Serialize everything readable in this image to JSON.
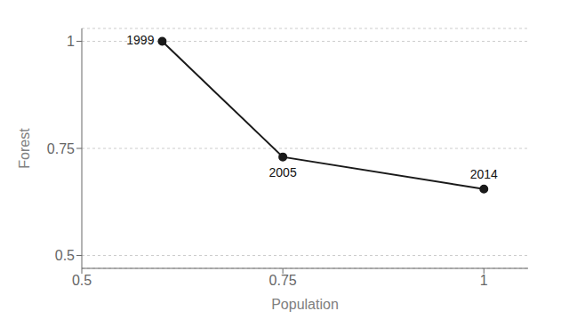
{
  "chart_data": {
    "type": "line",
    "x": [
      0.6,
      0.75,
      1.0
    ],
    "values": [
      1.0,
      0.73,
      0.655
    ],
    "annotations": [
      "1999",
      "2005",
      "2014"
    ],
    "xlabel": "Population",
    "ylabel": "Forest",
    "color": "#1a1a1a",
    "marker": "circle",
    "xlim": [
      0.5,
      1.055
    ],
    "ylim": [
      0.47,
      1.03
    ],
    "xticks": [
      0.5,
      0.75,
      1
    ],
    "yticks": [
      0.5,
      0.75,
      1
    ],
    "grid": "y"
  }
}
